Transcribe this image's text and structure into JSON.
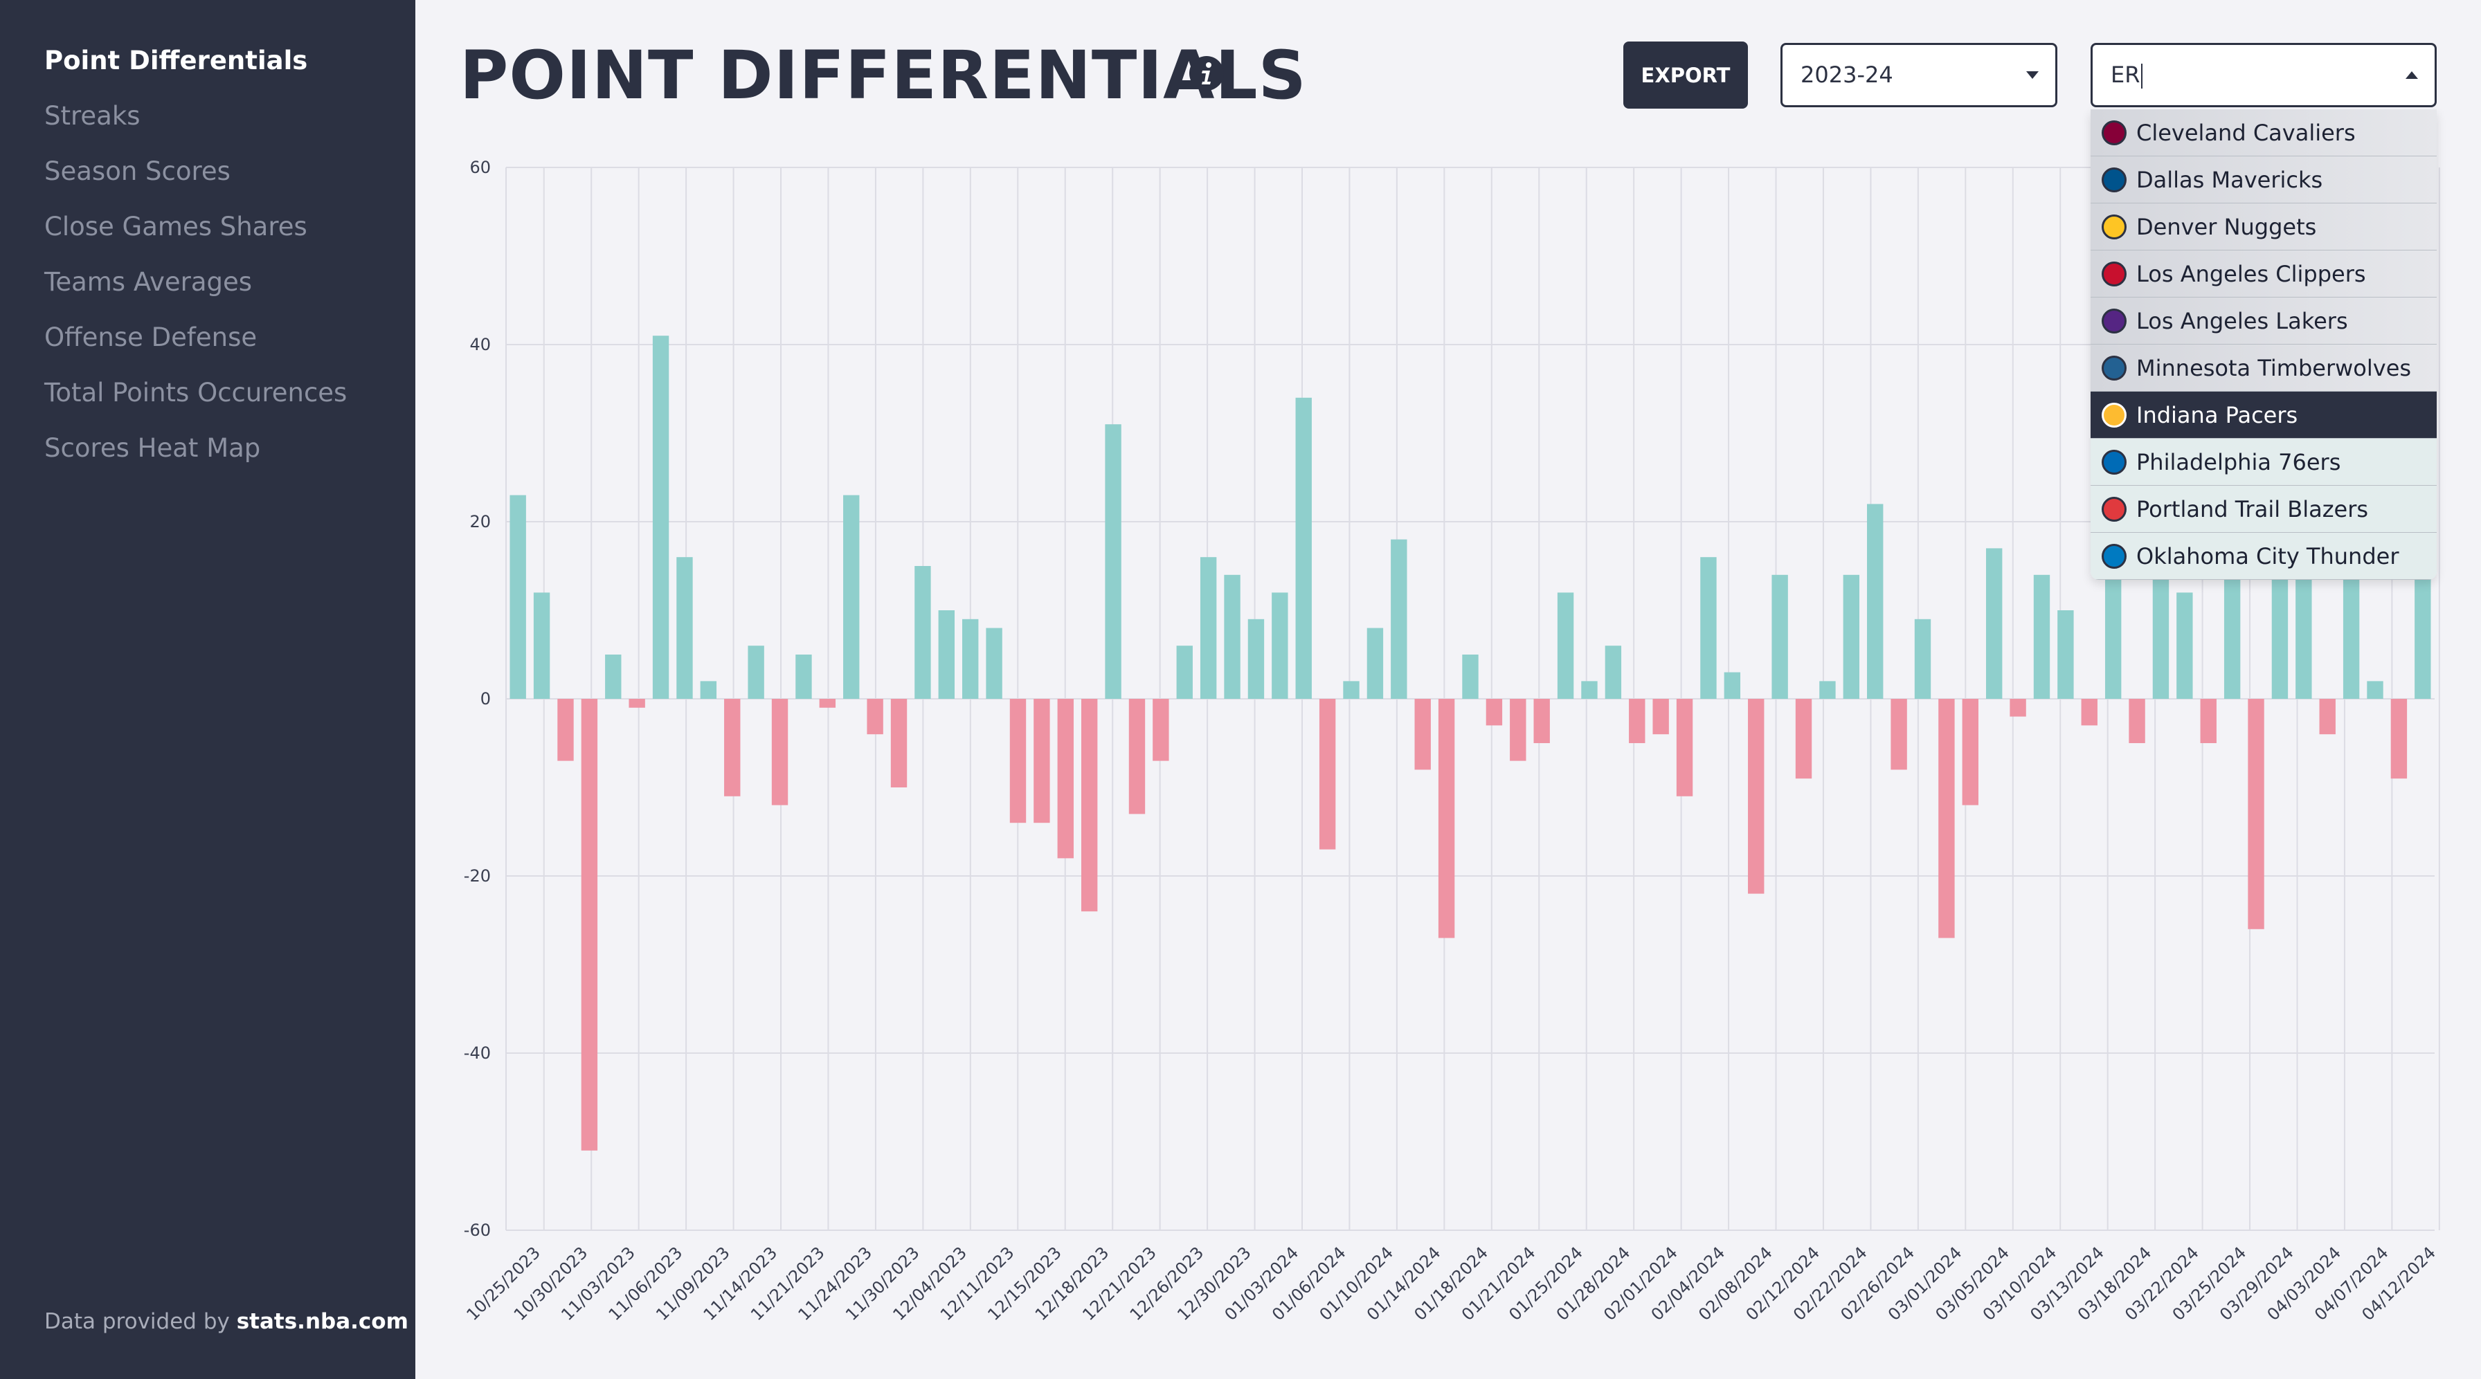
{
  "sidebar": {
    "items": [
      {
        "label": "Point Differentials",
        "active": true
      },
      {
        "label": "Streaks",
        "active": false
      },
      {
        "label": "Season Scores",
        "active": false
      },
      {
        "label": "Close Games Shares",
        "active": false
      },
      {
        "label": "Teams Averages",
        "active": false
      },
      {
        "label": "Offense Defense",
        "active": false
      },
      {
        "label": "Total Points Occurences",
        "active": false
      },
      {
        "label": "Scores Heat Map",
        "active": false
      }
    ],
    "footer_prefix": "Data provided by ",
    "footer_source": "stats.nba.com"
  },
  "header": {
    "title": "POINT DIFFERENTIALS",
    "info_icon": "info-icon",
    "export_label": "EXPORT",
    "season_value": "2023-24",
    "team_search_value": "ER"
  },
  "team_dropdown": {
    "options": [
      {
        "name": "Cleveland Cavaliers",
        "icon": "cavaliers-logo",
        "color": "#860038",
        "state": "grey"
      },
      {
        "name": "Dallas Mavericks",
        "icon": "mavericks-logo",
        "color": "#00538C",
        "state": "grey"
      },
      {
        "name": "Denver Nuggets",
        "icon": "nuggets-logo",
        "color": "#FEC524",
        "state": "grey"
      },
      {
        "name": "Los Angeles Clippers",
        "icon": "clippers-logo",
        "color": "#C8102E",
        "state": "grey"
      },
      {
        "name": "Los Angeles Lakers",
        "icon": "lakers-logo",
        "color": "#552583",
        "state": "grey"
      },
      {
        "name": "Minnesota Timberwolves",
        "icon": "timberwolves-logo",
        "color": "#236192",
        "state": "grey"
      },
      {
        "name": "Indiana Pacers",
        "icon": "pacers-logo",
        "color": "#FDBB30",
        "state": "selected"
      },
      {
        "name": "Philadelphia 76ers",
        "icon": "76ers-logo",
        "color": "#006BB6",
        "state": "light"
      },
      {
        "name": "Portland Trail Blazers",
        "icon": "blazers-logo",
        "color": "#E03A3E",
        "state": "light"
      },
      {
        "name": "Oklahoma City Thunder",
        "icon": "thunder-logo",
        "color": "#007AC1",
        "state": "light"
      }
    ]
  },
  "colors": {
    "win": "#8fcfcc",
    "loss": "#ee93a3",
    "sidebar_bg": "#2c3142",
    "page_bg": "#f3f3f7",
    "grid": "#dcdce4"
  },
  "chart_data": {
    "type": "bar",
    "title": "",
    "xlabel": "",
    "ylabel": "",
    "ylim": [
      -60,
      60
    ],
    "y_ticks": [
      60,
      40,
      20,
      0,
      -20,
      -40,
      -60
    ],
    "grid": true,
    "x_tick_labels": [
      "10/25/2023",
      "10/30/2023",
      "11/03/2023",
      "11/06/2023",
      "11/09/2023",
      "11/14/2023",
      "11/21/2023",
      "11/24/2023",
      "11/30/2023",
      "12/04/2023",
      "12/11/2023",
      "12/15/2023",
      "12/18/2023",
      "12/21/2023",
      "12/26/2023",
      "12/30/2023",
      "01/03/2024",
      "01/06/2024",
      "01/10/2024",
      "01/14/2024",
      "01/18/2024",
      "01/21/2024",
      "01/25/2024",
      "01/28/2024",
      "02/01/2024",
      "02/04/2024",
      "02/08/2024",
      "02/12/2024",
      "02/22/2024",
      "02/26/2024",
      "03/01/2024",
      "03/05/2024",
      "03/10/2024",
      "03/13/2024",
      "03/18/2024",
      "03/22/2024",
      "03/25/2024",
      "03/29/2024",
      "04/03/2024",
      "04/07/2024",
      "04/12/2024"
    ],
    "values": [
      23,
      12,
      -7,
      -51,
      5,
      -1,
      41,
      16,
      2,
      -11,
      6,
      -12,
      5,
      -1,
      23,
      -4,
      -10,
      15,
      10,
      9,
      8,
      -14,
      -14,
      -18,
      -24,
      31,
      -13,
      -7,
      6,
      16,
      14,
      9,
      12,
      34,
      -17,
      2,
      8,
      18,
      -8,
      -27,
      5,
      -3,
      -7,
      -5,
      12,
      2,
      6,
      -5,
      -4,
      -11,
      16,
      3,
      -22,
      14,
      -9,
      2,
      14,
      22,
      -8,
      9,
      -27,
      -12,
      17,
      -2,
      14,
      10,
      -3,
      21,
      -5,
      18,
      12,
      -5,
      15,
      -26,
      15,
      15,
      -4,
      14,
      2,
      -9,
      14
    ]
  }
}
